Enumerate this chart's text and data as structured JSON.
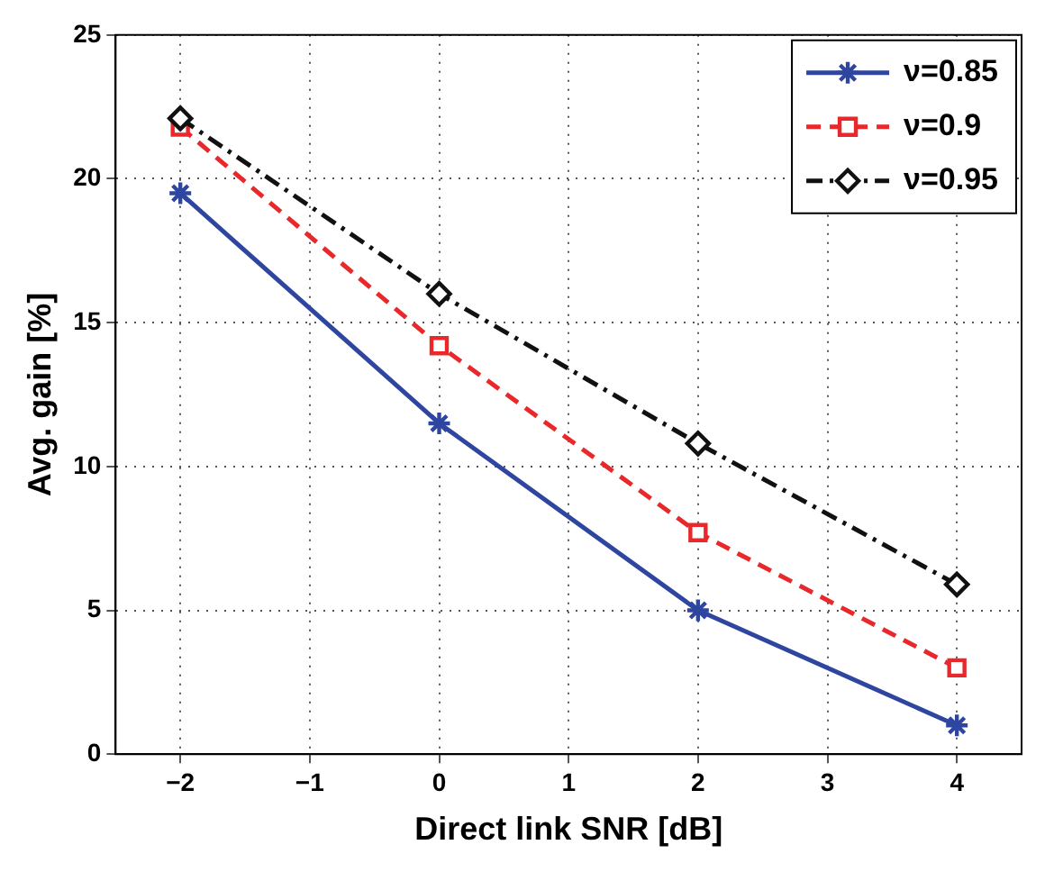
{
  "chart_data": {
    "type": "line",
    "xlabel": "Direct link SNR [dB]",
    "ylabel": "Avg. gain [%]",
    "x": [
      -2,
      0,
      2,
      4
    ],
    "xlim": [
      -2.5,
      4.5
    ],
    "xticks": [
      {
        "value": -2,
        "label": "−2"
      },
      {
        "value": -1,
        "label": "−1"
      },
      0,
      1,
      2,
      3,
      4
    ],
    "ylim": [
      0,
      25
    ],
    "yticks": [
      0,
      5,
      10,
      15,
      20,
      25
    ],
    "grid": true,
    "legend": "top right",
    "series": [
      {
        "name": "ν=0.85",
        "color": "#2e46a0",
        "values": [
          19.5,
          11.5,
          5.0,
          1.0
        ],
        "marker": "cross",
        "line_style": "solid"
      },
      {
        "name": "ν=0.9",
        "color": "#e8282a",
        "values": [
          21.8,
          14.2,
          7.7,
          3.0
        ],
        "marker": "square",
        "line_style": "dashed"
      },
      {
        "name": "ν=0.95",
        "color": "#111111",
        "values": [
          22.1,
          16.0,
          10.8,
          5.9
        ],
        "marker": "diamond",
        "line_style": "dashdot"
      }
    ]
  }
}
